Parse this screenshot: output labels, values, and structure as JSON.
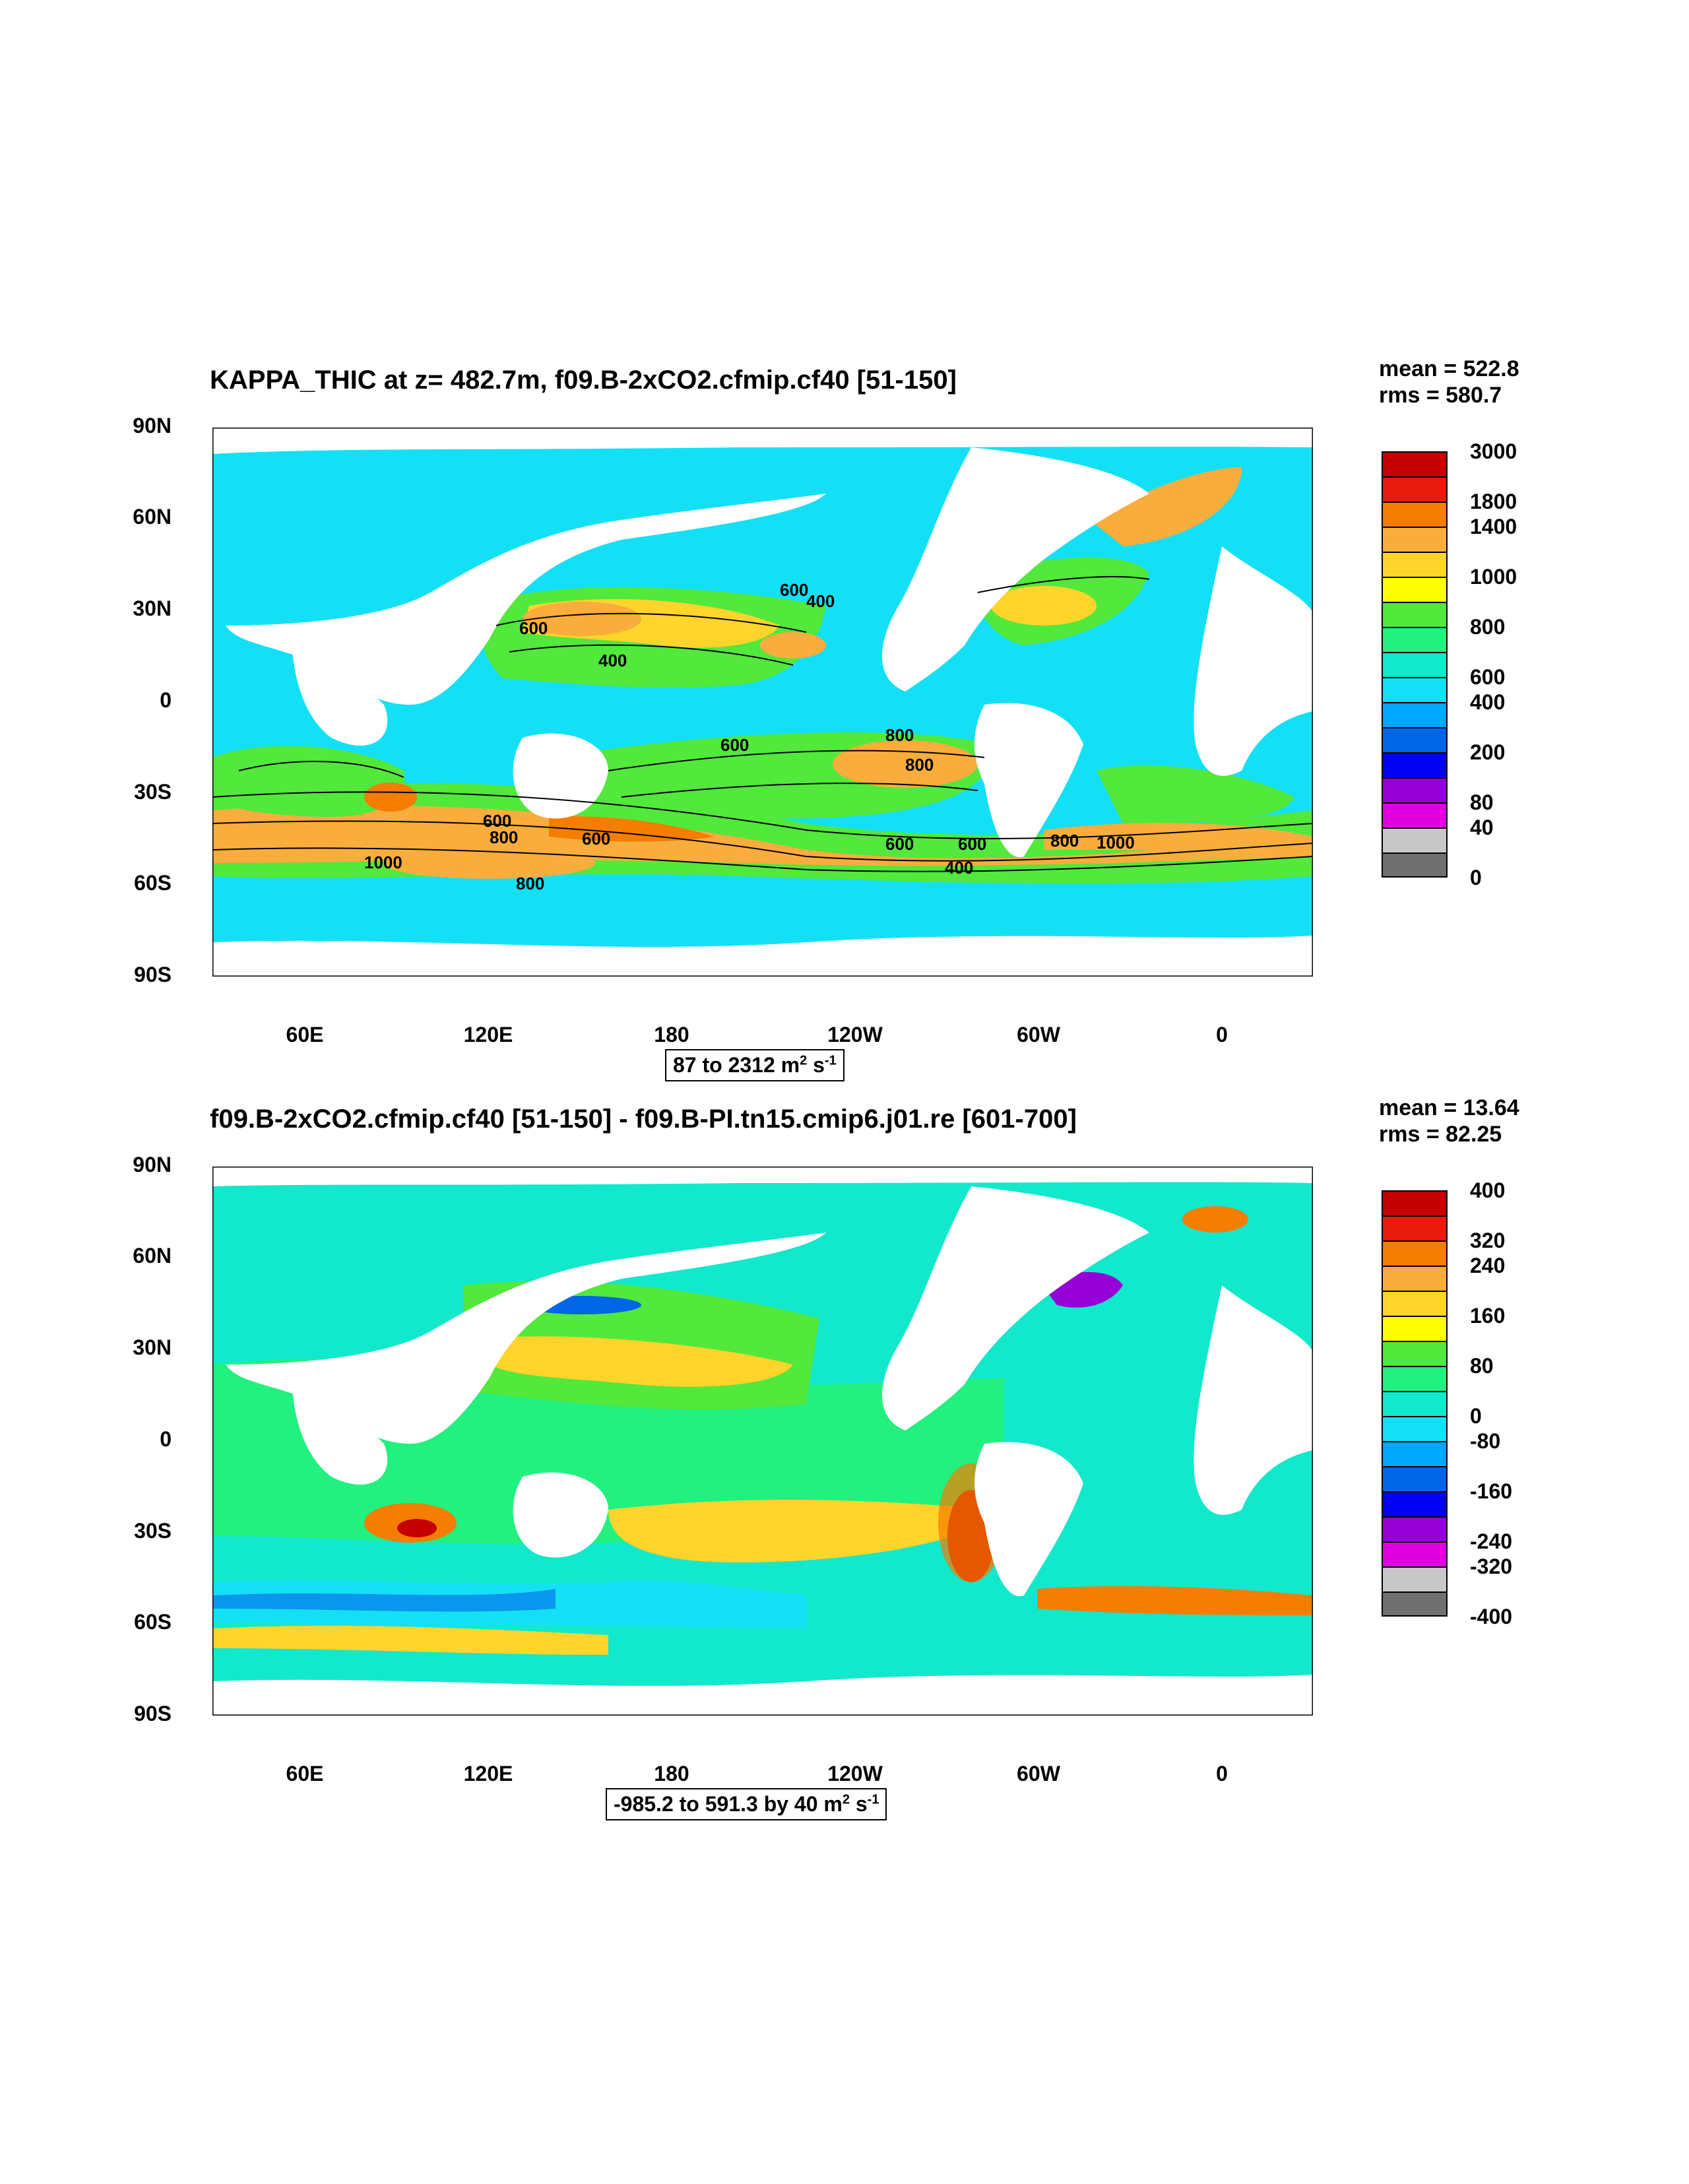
{
  "panels": [
    {
      "title": "KAPPA_THIC at z= 482.7m, f09.B-2xCO2.cfmip.cf40 [51-150]",
      "mean": "mean = 522.8",
      "rms": "rms = 580.7",
      "range_prefix": "87 to 2312 m",
      "range_unit_exp1": "2",
      "range_mid": " s",
      "range_unit_exp2": "-1",
      "colorbar_labels": [
        "3000",
        "1800",
        "1400",
        "1000",
        "800",
        "600",
        "400",
        "200",
        "80",
        "40",
        "0"
      ],
      "colorbar_colors": [
        "#c40000",
        "#e81c0c",
        "#f57d00",
        "#f9ad3c",
        "#ffd42b",
        "#ffff00",
        "#52e83c",
        "#22f07f",
        "#12e8cc",
        "#14e0f5",
        "#00a8ff",
        "#0066e6",
        "#0000f5",
        "#9400d6",
        "#e000e0",
        "#c8c8c8",
        "#707070"
      ],
      "contour_labels": [
        "600",
        "400",
        "400",
        "600",
        "800",
        "600",
        "600",
        "800",
        "600",
        "600",
        "1000",
        "800",
        "1000",
        "800",
        "600",
        "400",
        "800"
      ]
    },
    {
      "title": "f09.B-2xCO2.cfmip.cf40 [51-150] - f09.B-PI.tn15.cmip6.j01.re [601-700]",
      "mean": "mean = 13.64",
      "rms": "rms = 82.25",
      "range_prefix": "-985.2 to 591.3 by 40 m",
      "range_unit_exp1": "2",
      "range_mid": " s",
      "range_unit_exp2": "-1",
      "colorbar_labels": [
        "400",
        "320",
        "240",
        "160",
        "80",
        "0",
        "-80",
        "-160",
        "-240",
        "-320",
        "-400"
      ],
      "colorbar_colors": [
        "#c40000",
        "#e81c0c",
        "#f57d00",
        "#f9ad3c",
        "#ffd42b",
        "#ffff00",
        "#52e83c",
        "#22f07f",
        "#12e8cc",
        "#14e0f5",
        "#00a8ff",
        "#0066e6",
        "#0000f5",
        "#9400d6",
        "#e000e0",
        "#c8c8c8",
        "#707070"
      ]
    }
  ],
  "axes": {
    "y_ticks": [
      "90N",
      "60N",
      "30N",
      "0",
      "30S",
      "60S",
      "90S"
    ],
    "x_ticks": [
      "60E",
      "120E",
      "180",
      "120W",
      "60W",
      "0"
    ]
  },
  "chart_data": [
    {
      "type": "heatmap",
      "title": "KAPPA_THIC at z= 482.7m, f09.B-2xCO2.cfmip.cf40 [51-150]",
      "ylim": [
        "90S",
        "90N"
      ],
      "xlim": [
        "30E",
        "30E+360"
      ],
      "mean": 522.8,
      "rms": 580.7,
      "min": 87,
      "max": 2312,
      "units": "m2 s-1",
      "levels": [
        0,
        40,
        80,
        200,
        400,
        600,
        800,
        1000,
        1400,
        1800,
        3000
      ]
    },
    {
      "type": "heatmap",
      "title": "f09.B-2xCO2.cfmip.cf40 [51-150] - f09.B-PI.tn15.cmip6.j01.re [601-700]",
      "ylim": [
        "90S",
        "90N"
      ],
      "xlim": [
        "30E",
        "30E+360"
      ],
      "mean": 13.64,
      "rms": 82.25,
      "min": -985.2,
      "max": 591.3,
      "contour_interval": 40,
      "units": "m2 s-1",
      "levels": [
        -400,
        -320,
        -240,
        -160,
        -80,
        0,
        80,
        160,
        240,
        320,
        400
      ]
    }
  ]
}
